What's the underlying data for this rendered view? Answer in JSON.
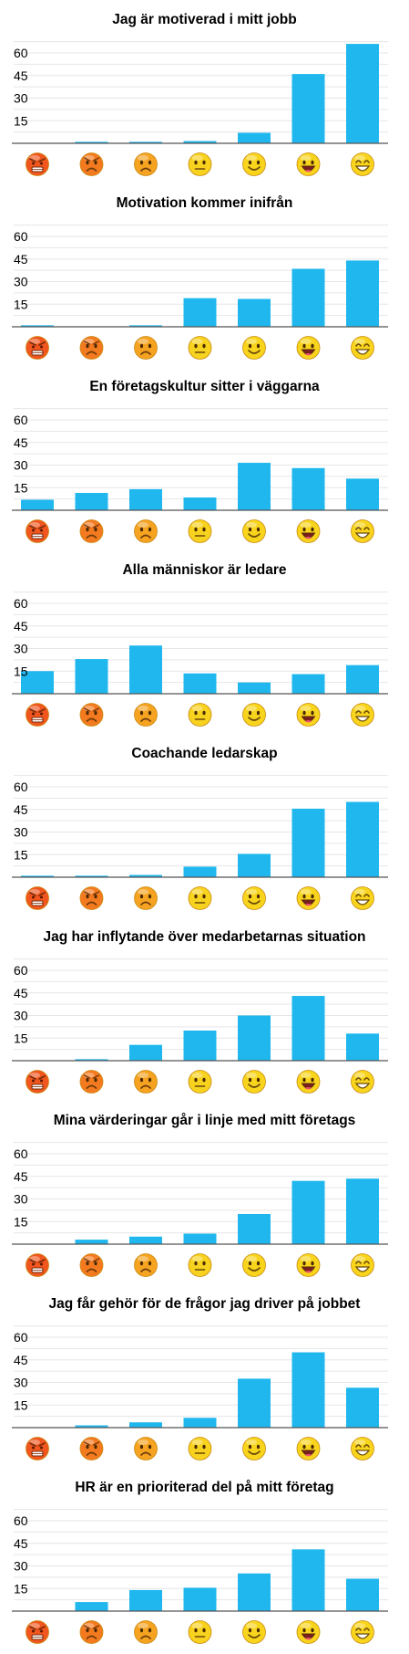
{
  "colors": {
    "bar": "#1fb7ee",
    "grid": "#e6e6e6",
    "axis": "#555555",
    "face_levels": [
      "#f0561e",
      "#f47a1f",
      "#f5a321",
      "#f7d21e",
      "#f8d51c",
      "#f8d51c",
      "#f8d51c"
    ]
  },
  "face_icons": [
    "very-angry-face-icon",
    "angry-face-icon",
    "frowning-face-icon",
    "neutral-face-icon",
    "smiling-face-icon",
    "laughing-face-icon",
    "grinning-face-icon"
  ],
  "chart_data": [
    {
      "type": "bar",
      "title": "Jag är motiverad i mitt jobb",
      "categories": [
        "1",
        "2",
        "3",
        "4",
        "5",
        "6",
        "7"
      ],
      "values": [
        0,
        1,
        1,
        1.5,
        7,
        46,
        66
      ],
      "ylim": [
        0,
        66
      ],
      "yticks": [
        15,
        30,
        45,
        60
      ],
      "grid": true,
      "xlabel": "",
      "ylabel": ""
    },
    {
      "type": "bar",
      "title": "Motivation kommer inifrån",
      "categories": [
        "1",
        "2",
        "3",
        "4",
        "5",
        "6",
        "7"
      ],
      "values": [
        1,
        0,
        1,
        19,
        18.5,
        38.5,
        44
      ],
      "ylim": [
        0,
        66
      ],
      "yticks": [
        15,
        30,
        45,
        60
      ],
      "grid": true,
      "xlabel": "",
      "ylabel": ""
    },
    {
      "type": "bar",
      "title": "En företagskultur sitter i väggarna",
      "categories": [
        "1",
        "2",
        "3",
        "4",
        "5",
        "6",
        "7"
      ],
      "values": [
        7,
        11.5,
        14,
        8.5,
        31.5,
        28,
        21
      ],
      "ylim": [
        0,
        66
      ],
      "yticks": [
        15,
        30,
        45,
        60
      ],
      "grid": true,
      "xlabel": "",
      "ylabel": ""
    },
    {
      "type": "bar",
      "title": "Alla människor är ledare",
      "categories": [
        "1",
        "2",
        "3",
        "4",
        "5",
        "6",
        "7"
      ],
      "values": [
        15,
        23,
        32,
        13.5,
        7.5,
        13,
        19
      ],
      "ylim": [
        0,
        66
      ],
      "yticks": [
        15,
        30,
        45,
        60
      ],
      "grid": true,
      "xlabel": "",
      "ylabel": ""
    },
    {
      "type": "bar",
      "title": "Coachande ledarskap",
      "categories": [
        "1",
        "2",
        "3",
        "4",
        "5",
        "6",
        "7"
      ],
      "values": [
        1,
        1,
        1.5,
        7,
        15.5,
        45.5,
        50
      ],
      "ylim": [
        0,
        66
      ],
      "yticks": [
        15,
        30,
        45,
        60
      ],
      "grid": true,
      "xlabel": "",
      "ylabel": ""
    },
    {
      "type": "bar",
      "title": "Jag har inflytande över medarbetarnas situation",
      "categories": [
        "1",
        "2",
        "3",
        "4",
        "5",
        "6",
        "7"
      ],
      "values": [
        0,
        1,
        10.5,
        20,
        30,
        43,
        18
      ],
      "ylim": [
        0,
        66
      ],
      "yticks": [
        15,
        30,
        45,
        60
      ],
      "grid": true,
      "xlabel": "",
      "ylabel": ""
    },
    {
      "type": "bar",
      "title": "Mina värderingar går i linje med mitt företags",
      "categories": [
        "1",
        "2",
        "3",
        "4",
        "5",
        "6",
        "7"
      ],
      "values": [
        0,
        3,
        5,
        7,
        20,
        42,
        43.5
      ],
      "ylim": [
        0,
        66
      ],
      "yticks": [
        15,
        30,
        45,
        60
      ],
      "grid": true,
      "xlabel": "",
      "ylabel": ""
    },
    {
      "type": "bar",
      "title": "Jag får gehör för de frågor jag driver på jobbet",
      "categories": [
        "1",
        "2",
        "3",
        "4",
        "5",
        "6",
        "7"
      ],
      "values": [
        0,
        1.5,
        3.5,
        6.5,
        32.5,
        50,
        26.5
      ],
      "ylim": [
        0,
        66
      ],
      "yticks": [
        15,
        30,
        45,
        60
      ],
      "grid": true,
      "xlabel": "",
      "ylabel": ""
    },
    {
      "type": "bar",
      "title": "HR är en prioriterad del på mitt företag",
      "categories": [
        "1",
        "2",
        "3",
        "4",
        "5",
        "6",
        "7"
      ],
      "values": [
        0,
        6,
        14,
        15.5,
        25,
        41,
        21.5
      ],
      "ylim": [
        0,
        66
      ],
      "yticks": [
        15,
        30,
        45,
        60
      ],
      "grid": true,
      "xlabel": "",
      "ylabel": ""
    }
  ]
}
